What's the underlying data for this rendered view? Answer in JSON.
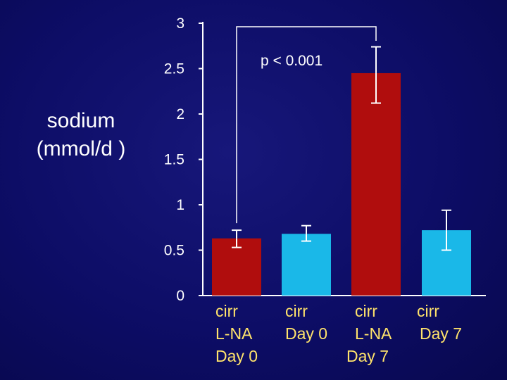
{
  "chart_data": {
    "type": "bar",
    "categories": [
      [
        "cirr",
        "L-NA",
        "Day 0"
      ],
      [
        "cirr",
        "Day 0"
      ],
      [
        "cirr",
        "L-NA",
        "Day 7"
      ],
      [
        "cirr",
        "Day 7"
      ]
    ],
    "values": [
      0.63,
      0.68,
      2.45,
      0.72
    ],
    "error_upper": [
      0.72,
      0.77,
      2.74,
      0.94
    ],
    "error_lower": [
      0.53,
      0.6,
      2.12,
      0.5
    ],
    "bar_colors": [
      "#b00d0d",
      "#1ab8e8",
      "#b00d0d",
      "#1ab8e8"
    ],
    "ylabel_lines": [
      "sodium",
      "(mmol/d )"
    ],
    "yticks": [
      "0",
      "0.5",
      "1",
      "1.5",
      "2",
      "2.5",
      "3"
    ],
    "ylim": [
      0,
      3
    ],
    "grid": false,
    "annotation": {
      "text": "p < 0.001",
      "from_category": 0,
      "to_category": 2
    },
    "colors": {
      "background": "#0d0d66",
      "axis": "#ffffff",
      "category_text": "#ffe36b"
    }
  }
}
